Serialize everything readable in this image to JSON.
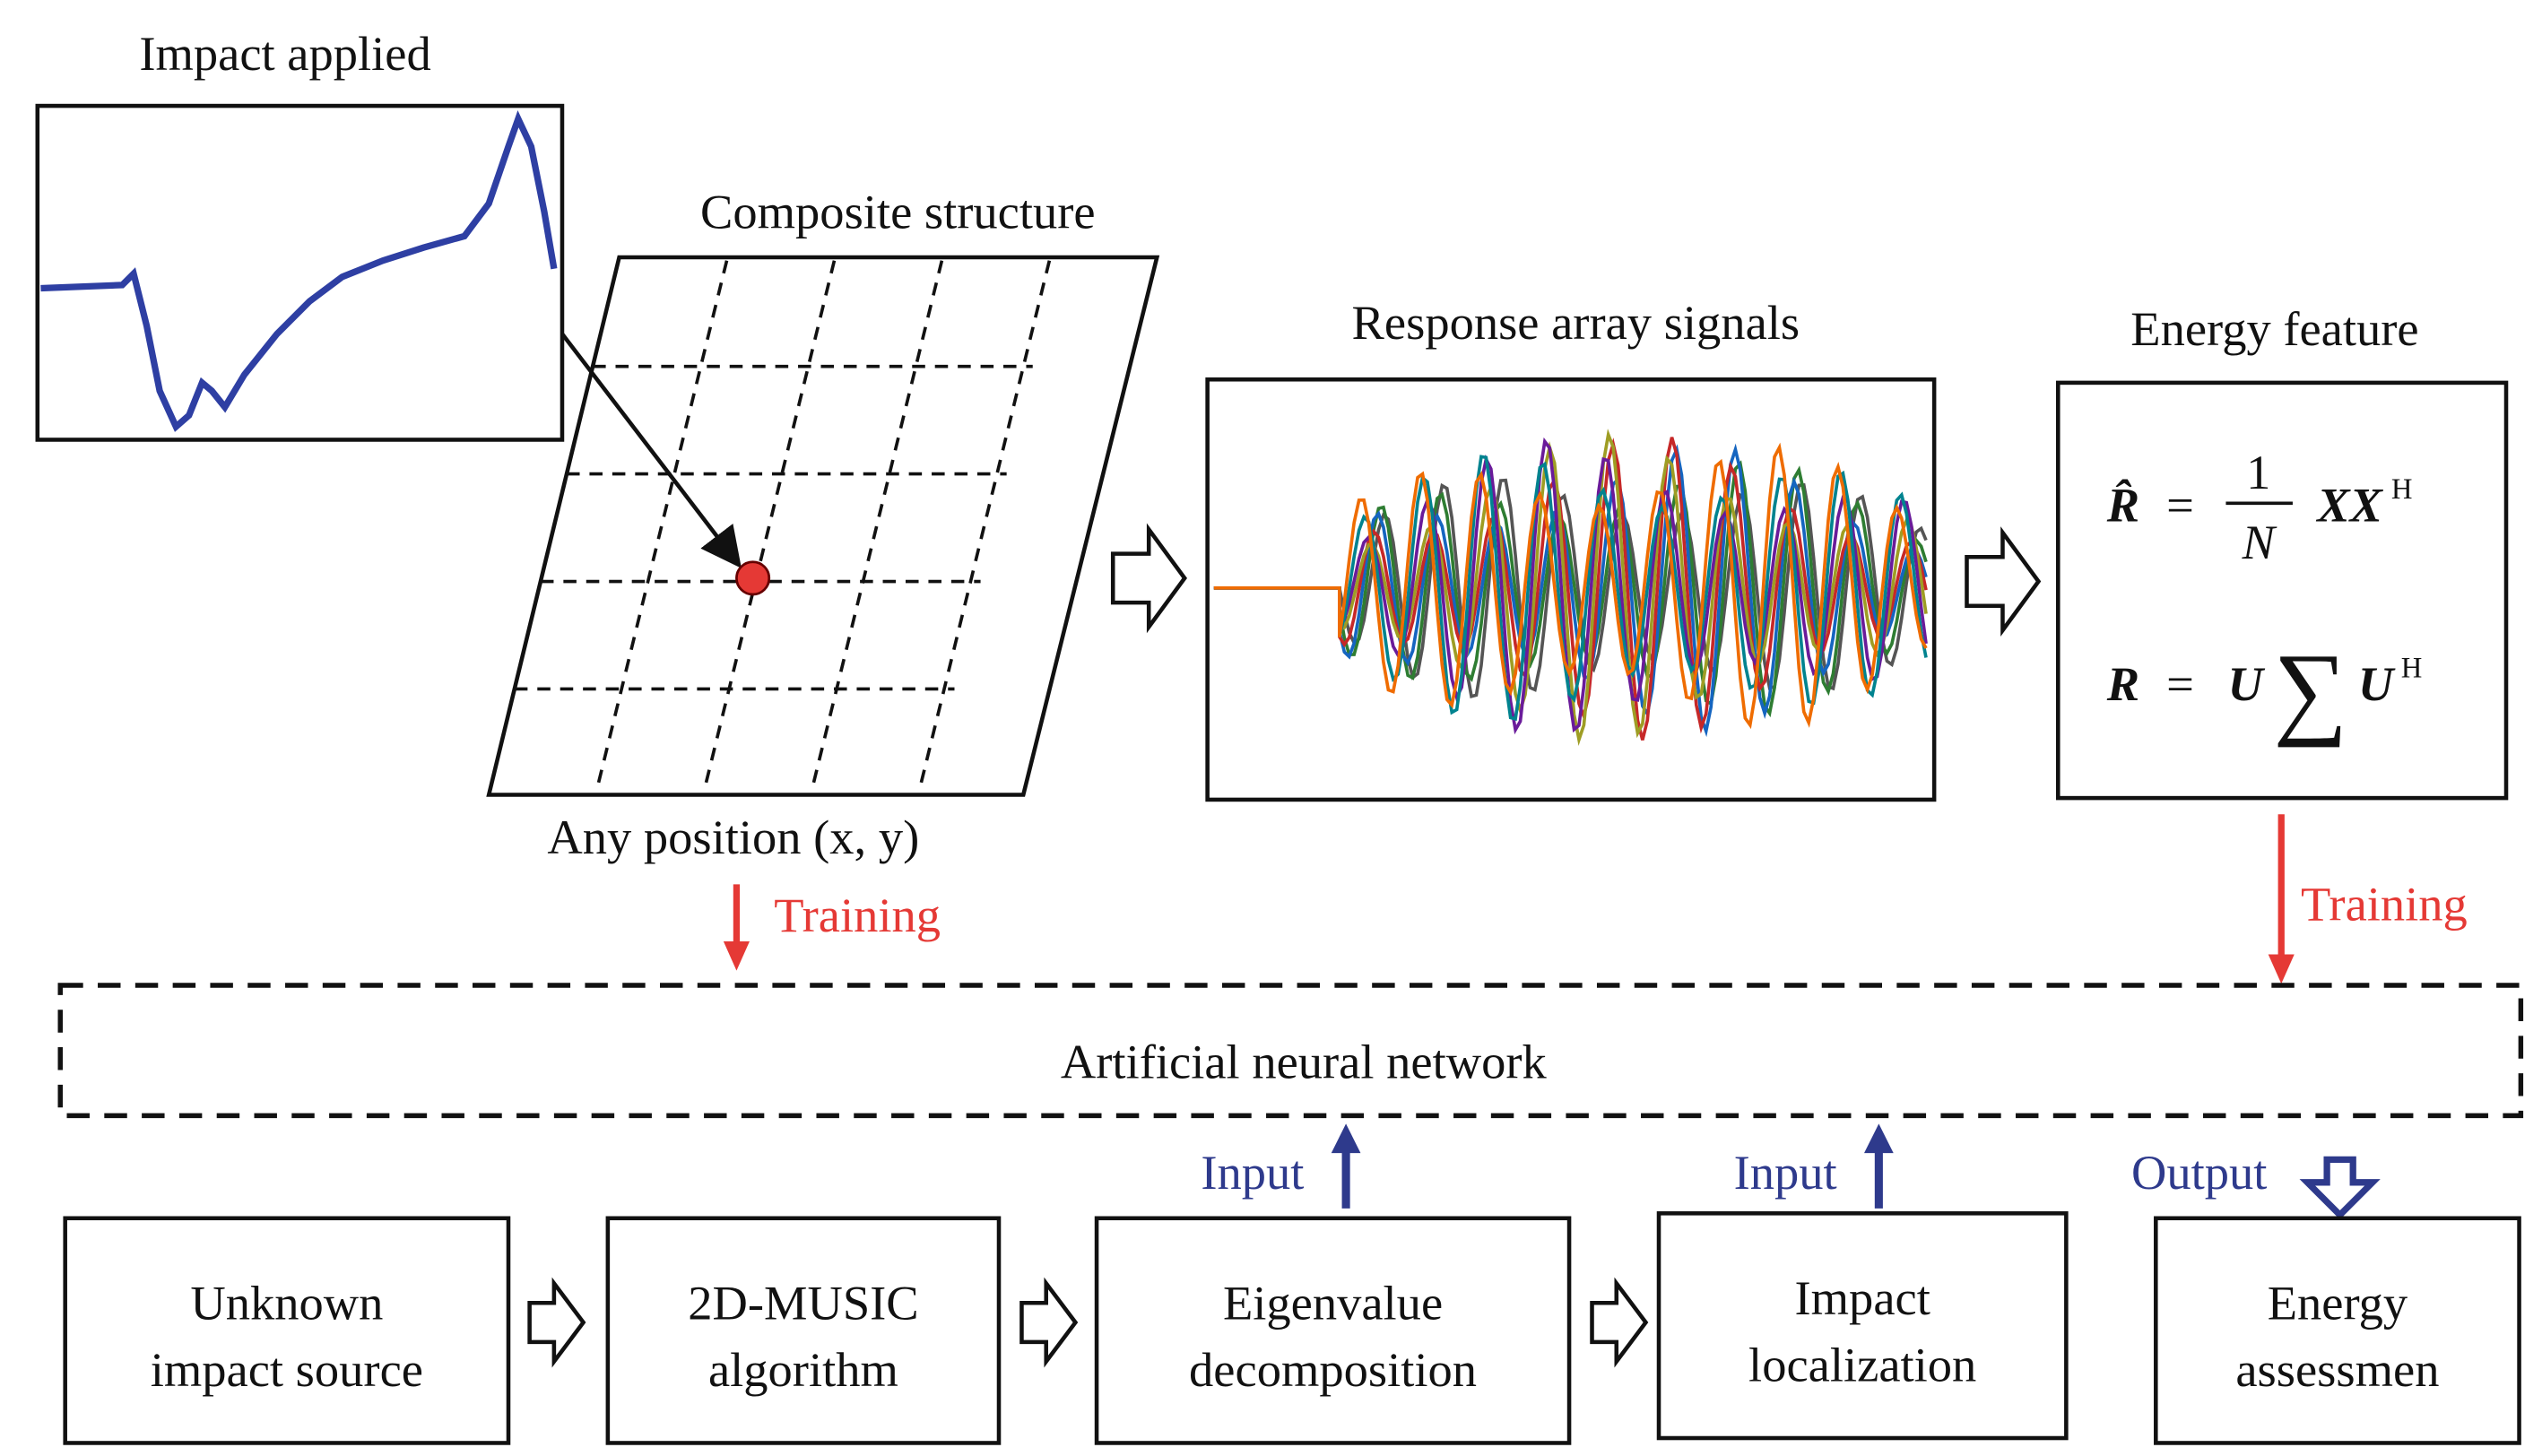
{
  "impact": {
    "title": "Impact applied"
  },
  "structure": {
    "title": "Composite structure",
    "caption": "Any position (x, y)"
  },
  "response": {
    "title": "Response array signals"
  },
  "energy": {
    "title": "Energy feature",
    "formula_1": [
      "R̂",
      "=",
      "1",
      "N",
      "XX",
      "H"
    ],
    "formula_2": [
      "R",
      "=",
      "U",
      "∑",
      "U",
      "H"
    ]
  },
  "training": [
    "Training",
    "Training"
  ],
  "network": {
    "label": "Artificial neural network"
  },
  "inputs": [
    "Input",
    "Input"
  ],
  "output": "Output",
  "steps": [
    {
      "lines": [
        "Unknown",
        "impact source"
      ]
    },
    {
      "lines": [
        "2D-MUSIC",
        "algorithm"
      ]
    },
    {
      "lines": [
        "Eigenvalue",
        "decomposition"
      ]
    },
    {
      "lines": [
        "Impact",
        "localization"
      ]
    },
    {
      "lines": [
        "Energy",
        "assessmen"
      ]
    }
  ]
}
